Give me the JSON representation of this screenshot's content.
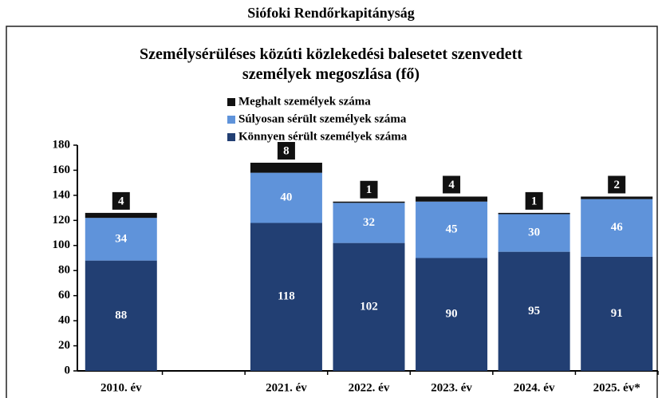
{
  "chart_data": {
    "type": "stacked_bar",
    "suptitle": "Siófoki Rendőrkapitányság",
    "title": "Személysérüléses közúti közlekedési balesetet szenvedett személyek megoszlása (fő)",
    "categories": [
      "2010. év",
      null,
      "2021. év",
      "2022. év",
      "2023. év",
      "2024. év",
      "2025. év*"
    ],
    "series": [
      {
        "name": "Könnyen sérült személyek száma",
        "color": "#223f73",
        "values": [
          88,
          null,
          118,
          102,
          90,
          95,
          91
        ]
      },
      {
        "name": "Súlyosan sérült személyek száma",
        "color": "#5f93da",
        "values": [
          34,
          null,
          40,
          32,
          45,
          30,
          46
        ]
      },
      {
        "name": "Meghalt személyek száma",
        "color": "#111111",
        "values": [
          4,
          null,
          8,
          1,
          4,
          1,
          2
        ]
      }
    ],
    "ylim": [
      0,
      180
    ],
    "yticks": [
      0,
      20,
      40,
      60,
      80,
      100,
      120,
      140,
      160,
      180
    ],
    "grid": false
  }
}
